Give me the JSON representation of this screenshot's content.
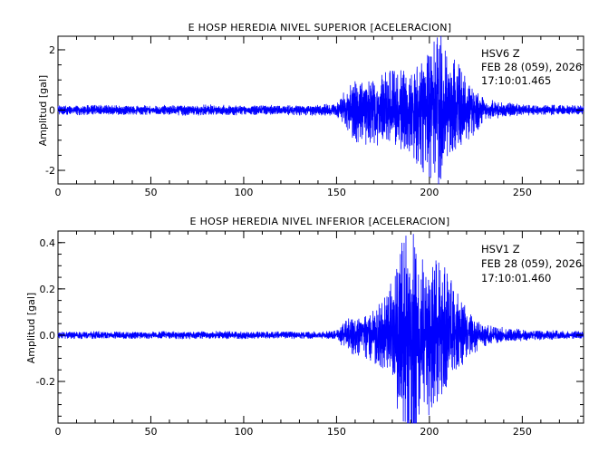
{
  "chart_data": [
    {
      "type": "line",
      "title": "E HOSP HEREDIA NIVEL SUPERIOR [ACELERACION]",
      "ylabel": "Amplitud  [gal]",
      "xlabel": "",
      "xlim": [
        0,
        283
      ],
      "ylim": [
        -2.45,
        2.45
      ],
      "xticks": [
        0,
        50,
        100,
        150,
        200,
        250
      ],
      "xtick_labels": [
        "0",
        "50",
        "100",
        "150",
        "200",
        "250"
      ],
      "yticks": [
        -2,
        0,
        2
      ],
      "ytick_labels": [
        "-2",
        "0",
        "2"
      ],
      "annotation": [
        "HSV6   Z",
        "FEB 28 (059), 2026",
        "17:10:01.465"
      ],
      "series": [
        {
          "color": "#0000ff",
          "x": [
            0,
            20,
            40,
            60,
            80,
            100,
            120,
            140,
            150,
            155,
            160,
            165,
            170,
            175,
            180,
            185,
            190,
            195,
            200,
            203,
            205,
            207,
            210,
            215,
            220,
            225,
            230,
            240,
            250,
            260,
            270,
            283
          ],
          "envelope": [
            0.12,
            0.13,
            0.12,
            0.13,
            0.14,
            0.13,
            0.13,
            0.14,
            0.18,
            0.55,
            0.85,
            0.9,
            0.95,
            1.0,
            1.0,
            1.1,
            1.3,
            1.5,
            1.8,
            2.0,
            2.4,
            2.0,
            1.5,
            1.25,
            1.0,
            0.6,
            0.3,
            0.2,
            0.15,
            0.14,
            0.13,
            0.12
          ]
        }
      ]
    },
    {
      "type": "line",
      "title": "E HOSP HEREDIA NIVEL INFERIOR [ACELERACION]",
      "ylabel": "Amplitud  [gal]",
      "xlabel": "",
      "xlim": [
        0,
        283
      ],
      "ylim": [
        -0.38,
        0.45
      ],
      "xticks": [
        0,
        50,
        100,
        150,
        200,
        250
      ],
      "xtick_labels": [
        "0",
        "50",
        "100",
        "150",
        "200",
        "250"
      ],
      "yticks": [
        -0.2,
        0.0,
        0.2,
        0.4
      ],
      "ytick_labels": [
        "-0.2",
        "0.0",
        "0.2",
        "0.4"
      ],
      "annotation": [
        "HSV1   Z",
        "FEB 28 (059), 2026",
        "17:10:01.460"
      ],
      "series": [
        {
          "color": "#0000ff",
          "x": [
            0,
            20,
            40,
            60,
            80,
            100,
            120,
            140,
            150,
            153,
            156,
            160,
            165,
            170,
            175,
            180,
            183,
            186,
            190,
            195,
            200,
            205,
            210,
            215,
            220,
            225,
            230,
            240,
            250,
            260,
            270,
            283
          ],
          "envelope": [
            0.012,
            0.013,
            0.012,
            0.013,
            0.013,
            0.013,
            0.012,
            0.013,
            0.015,
            0.04,
            0.06,
            0.07,
            0.08,
            0.1,
            0.13,
            0.18,
            0.3,
            0.37,
            0.43,
            0.32,
            0.28,
            0.25,
            0.22,
            0.15,
            0.1,
            0.06,
            0.04,
            0.025,
            0.02,
            0.017,
            0.015,
            0.013
          ]
        }
      ]
    }
  ]
}
